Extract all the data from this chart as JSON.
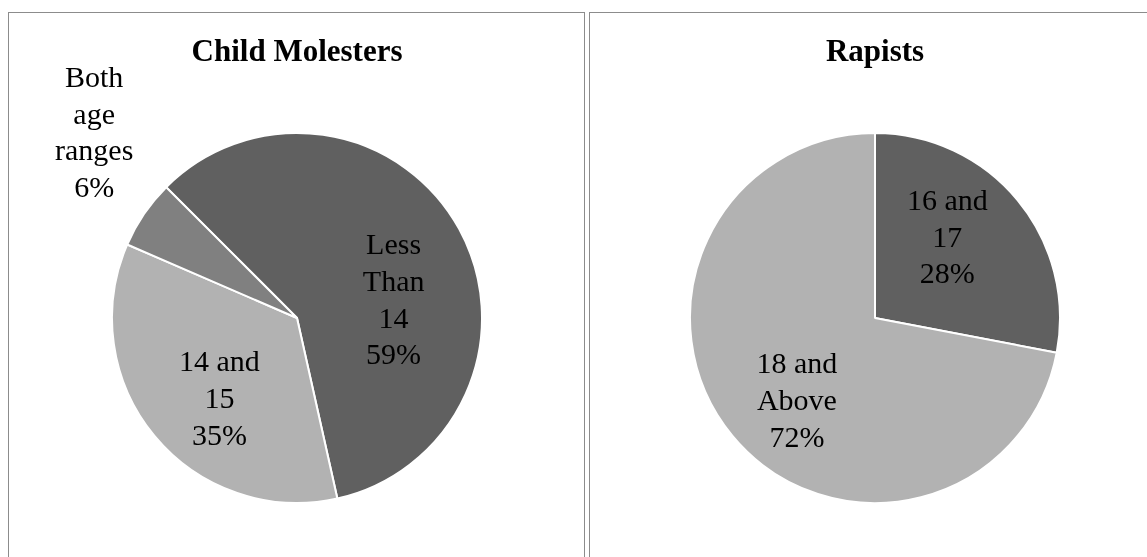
{
  "chart_data": [
    {
      "type": "pie",
      "title": "Child Molesters",
      "categories": [
        "Less Than 14",
        "14 and 15",
        "Both age ranges"
      ],
      "values": [
        59,
        35,
        6
      ],
      "colors": [
        "#606060",
        "#b2b2b2",
        "#808080"
      ],
      "value_labels": [
        "59%",
        "35%",
        "6%"
      ]
    },
    {
      "type": "pie",
      "title": "Rapists",
      "categories": [
        "16 and 17",
        "18 and Above"
      ],
      "values": [
        28,
        72
      ],
      "colors": [
        "#606060",
        "#b2b2b2"
      ],
      "value_labels": [
        "28%",
        "72%"
      ]
    }
  ]
}
